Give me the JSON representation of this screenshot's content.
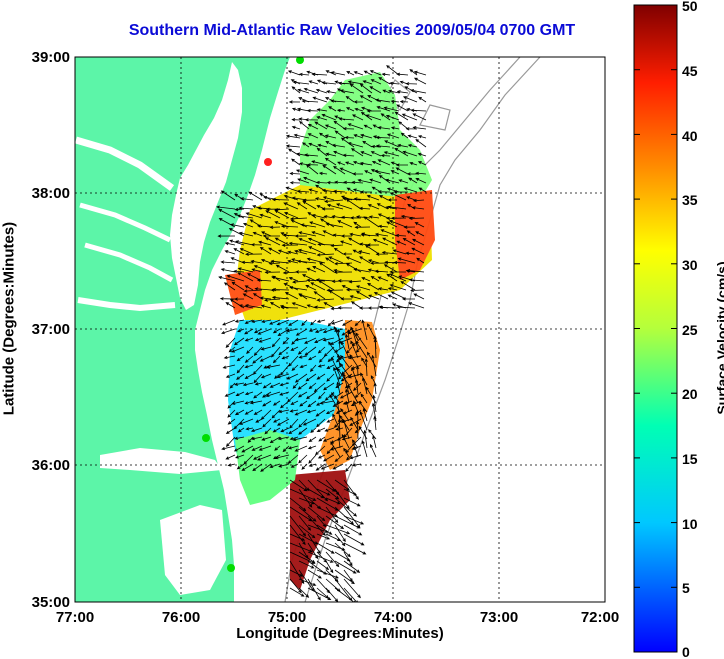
{
  "title": "Southern Mid-Atlantic Raw Velocities 2009/05/04 0700 GMT",
  "x_axis": {
    "label": "Longitude (Degrees:Minutes)",
    "ticks": [
      "77:00",
      "76:00",
      "75:00",
      "74:00",
      "73:00",
      "72:00"
    ]
  },
  "y_axis": {
    "label": "Latitude (Degrees:Minutes)",
    "ticks": [
      "39:00",
      "38:00",
      "37:00",
      "36:00",
      "35:00"
    ]
  },
  "colorbar": {
    "label": "Surface Velocity (cm/s)",
    "ticks": [
      "50",
      "45",
      "40",
      "35",
      "30",
      "25",
      "20",
      "15",
      "10",
      "5",
      "0"
    ],
    "range": [
      0,
      50
    ],
    "colormap": "jet"
  },
  "map": {
    "lon_range": [
      -77,
      -72
    ],
    "lat_range": [
      35,
      39
    ],
    "land_color": "#5cf5a8",
    "water_color": "#ffffff",
    "bathymetry_color": "#9a9a9a",
    "grid": "dotted",
    "station_markers": [
      {
        "color": "#00dd00"
      },
      {
        "color": "#ff2020"
      },
      {
        "color": "#00dd00"
      },
      {
        "color": "#00dd00"
      }
    ]
  }
}
